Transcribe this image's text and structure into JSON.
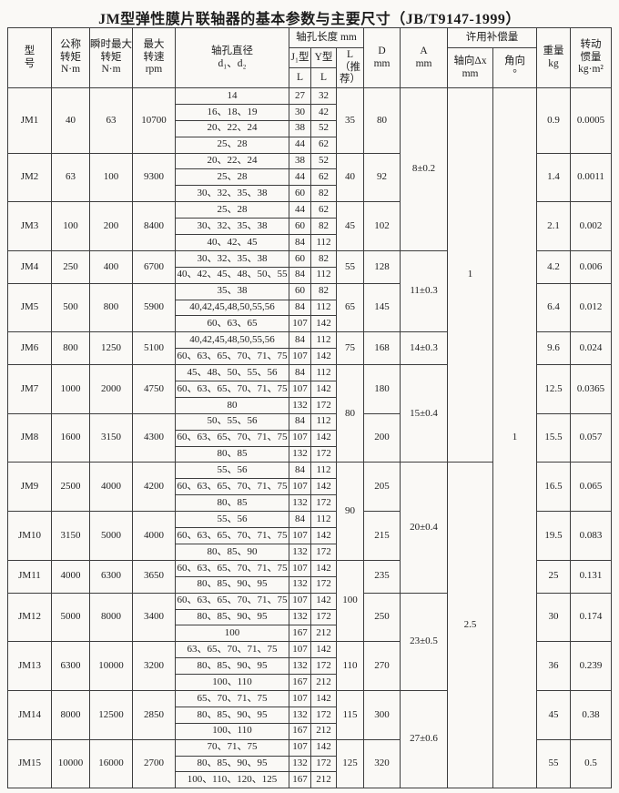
{
  "title": "JM型弹性膜片联轴器的基本参数与主要尺寸（JB/T9147-1999）",
  "colors": {
    "background": "#faf9f6",
    "border": "#3d3d3d",
    "text": "#1c1c1c"
  },
  "header": {
    "model": "型\n号",
    "nominal_torque": "公称\n转矩\nN·m",
    "peak_torque": "瞬时最大\n转矩\nN·m",
    "max_speed": "最大\n转速\nrpm",
    "bore_diameter": "轴孔直径\nd₁、d₂",
    "bore_length": "轴孔长度 mm",
    "j_type": "J₁型",
    "y_type": "Y型",
    "l": "L",
    "l_rec": "L\n（推荐）",
    "d_col": "D\nmm",
    "a_col": "A\nmm",
    "compensation": "许用补偿量",
    "axial": "轴向Δx\nmm",
    "angular": "角向\n°",
    "weight": "重量\nkg",
    "inertia": "转动\n惯量\nkg·m²"
  },
  "table": {
    "models": [
      {
        "model": "JM1",
        "nominal_torque": "40",
        "peak_torque": "63",
        "max_speed": "10700",
        "D": "80",
        "weight": "0.9",
        "inertia": "0.0005",
        "bores": [
          {
            "d": "14",
            "j_l": "27",
            "y_l": "32"
          },
          {
            "d": "16、18、19",
            "j_l": "30",
            "y_l": "42"
          },
          {
            "d": "20、22、24",
            "j_l": "38",
            "y_l": "52"
          },
          {
            "d": "25、28",
            "j_l": "44",
            "y_l": "62"
          }
        ]
      },
      {
        "model": "JM2",
        "nominal_torque": "63",
        "peak_torque": "100",
        "max_speed": "9300",
        "D": "92",
        "weight": "1.4",
        "inertia": "0.0011",
        "bores": [
          {
            "d": "20、22、24",
            "j_l": "38",
            "y_l": "52"
          },
          {
            "d": "25、28",
            "j_l": "44",
            "y_l": "62"
          },
          {
            "d": "30、32、35、38",
            "j_l": "60",
            "y_l": "82"
          }
        ]
      },
      {
        "model": "JM3",
        "nominal_torque": "100",
        "peak_torque": "200",
        "max_speed": "8400",
        "D": "102",
        "weight": "2.1",
        "inertia": "0.002",
        "bores": [
          {
            "d": "25、28",
            "j_l": "44",
            "y_l": "62"
          },
          {
            "d": "30、32、35、38",
            "j_l": "60",
            "y_l": "82"
          },
          {
            "d": "40、42、45",
            "j_l": "84",
            "y_l": "112"
          }
        ]
      },
      {
        "model": "JM4",
        "nominal_torque": "250",
        "peak_torque": "400",
        "max_speed": "6700",
        "D": "128",
        "weight": "4.2",
        "inertia": "0.006",
        "bores": [
          {
            "d": "30、32、35、38",
            "j_l": "60",
            "y_l": "82"
          },
          {
            "d": "40、42、45、48、50、55",
            "j_l": "84",
            "y_l": "112"
          }
        ]
      },
      {
        "model": "JM5",
        "nominal_torque": "500",
        "peak_torque": "800",
        "max_speed": "5900",
        "D": "145",
        "weight": "6.4",
        "inertia": "0.012",
        "bores": [
          {
            "d": "35、38",
            "j_l": "60",
            "y_l": "82"
          },
          {
            "d": "40,42,45,48,50,55,56",
            "j_l": "84",
            "y_l": "112"
          },
          {
            "d": "60、63、65",
            "j_l": "107",
            "y_l": "142"
          }
        ]
      },
      {
        "model": "JM6",
        "nominal_torque": "800",
        "peak_torque": "1250",
        "max_speed": "5100",
        "D": "168",
        "weight": "9.6",
        "inertia": "0.024",
        "bores": [
          {
            "d": "40,42,45,48,50,55,56",
            "j_l": "84",
            "y_l": "112"
          },
          {
            "d": "60、63、65、70、71、75",
            "j_l": "107",
            "y_l": "142"
          }
        ]
      },
      {
        "model": "JM7",
        "nominal_torque": "1000",
        "peak_torque": "2000",
        "max_speed": "4750",
        "D": "180",
        "weight": "12.5",
        "inertia": "0.0365",
        "bores": [
          {
            "d": "45、48、50、55、56",
            "j_l": "84",
            "y_l": "112"
          },
          {
            "d": "60、63、65、70、71、75",
            "j_l": "107",
            "y_l": "142"
          },
          {
            "d": "80",
            "j_l": "132",
            "y_l": "172"
          }
        ]
      },
      {
        "model": "JM8",
        "nominal_torque": "1600",
        "peak_torque": "3150",
        "max_speed": "4300",
        "D": "200",
        "weight": "15.5",
        "inertia": "0.057",
        "bores": [
          {
            "d": "50、55、56",
            "j_l": "84",
            "y_l": "112"
          },
          {
            "d": "60、63、65、70、71、75",
            "j_l": "107",
            "y_l": "142"
          },
          {
            "d": "80、85",
            "j_l": "132",
            "y_l": "172"
          }
        ]
      },
      {
        "model": "JM9",
        "nominal_torque": "2500",
        "peak_torque": "4000",
        "max_speed": "4200",
        "D": "205",
        "weight": "16.5",
        "inertia": "0.065",
        "bores": [
          {
            "d": "55、56",
            "j_l": "84",
            "y_l": "112"
          },
          {
            "d": "60、63、65、70、71、75",
            "j_l": "107",
            "y_l": "142"
          },
          {
            "d": "80、85",
            "j_l": "132",
            "y_l": "172"
          }
        ]
      },
      {
        "model": "JM10",
        "nominal_torque": "3150",
        "peak_torque": "5000",
        "max_speed": "4000",
        "D": "215",
        "weight": "19.5",
        "inertia": "0.083",
        "bores": [
          {
            "d": "55、56",
            "j_l": "84",
            "y_l": "112"
          },
          {
            "d": "60、63、65、70、71、75",
            "j_l": "107",
            "y_l": "142"
          },
          {
            "d": "80、85、90",
            "j_l": "132",
            "y_l": "172"
          }
        ]
      },
      {
        "model": "JM11",
        "nominal_torque": "4000",
        "peak_torque": "6300",
        "max_speed": "3650",
        "D": "235",
        "weight": "25",
        "inertia": "0.131",
        "bores": [
          {
            "d": "60、63、65、70、71、75",
            "j_l": "107",
            "y_l": "142"
          },
          {
            "d": "80、85、90、95",
            "j_l": "132",
            "y_l": "172"
          }
        ]
      },
      {
        "model": "JM12",
        "nominal_torque": "5000",
        "peak_torque": "8000",
        "max_speed": "3400",
        "D": "250",
        "weight": "30",
        "inertia": "0.174",
        "bores": [
          {
            "d": "60、63、65、70、71、75",
            "j_l": "107",
            "y_l": "142"
          },
          {
            "d": "80、85、90、95",
            "j_l": "132",
            "y_l": "172"
          },
          {
            "d": "100",
            "j_l": "167",
            "y_l": "212"
          }
        ]
      },
      {
        "model": "JM13",
        "nominal_torque": "6300",
        "peak_torque": "10000",
        "max_speed": "3200",
        "D": "270",
        "weight": "36",
        "inertia": "0.239",
        "bores": [
          {
            "d": "63、65、70、71、75",
            "j_l": "107",
            "y_l": "142"
          },
          {
            "d": "80、85、90、95",
            "j_l": "132",
            "y_l": "172"
          },
          {
            "d": "100、110",
            "j_l": "167",
            "y_l": "212"
          }
        ]
      },
      {
        "model": "JM14",
        "nominal_torque": "8000",
        "peak_torque": "12500",
        "max_speed": "2850",
        "D": "300",
        "weight": "45",
        "inertia": "0.38",
        "bores": [
          {
            "d": "65、70、71、75",
            "j_l": "107",
            "y_l": "142"
          },
          {
            "d": "80、85、90、95",
            "j_l": "132",
            "y_l": "172"
          },
          {
            "d": "100、110",
            "j_l": "167",
            "y_l": "212"
          }
        ]
      },
      {
        "model": "JM15",
        "nominal_torque": "10000",
        "peak_torque": "16000",
        "max_speed": "2700",
        "D": "320",
        "weight": "55",
        "inertia": "0.5",
        "bores": [
          {
            "d": "70、71、75",
            "j_l": "107",
            "y_l": "142"
          },
          {
            "d": "80、85、90、95",
            "j_l": "132",
            "y_l": "172"
          },
          {
            "d": "100、110、120、125",
            "j_l": "167",
            "y_l": "212"
          }
        ]
      }
    ],
    "l_rec_spans": [
      {
        "value": "35",
        "models": 1
      },
      {
        "value": "40",
        "models": 1
      },
      {
        "value": "45",
        "models": 1
      },
      {
        "value": "55",
        "models": 1
      },
      {
        "value": "65",
        "models": 1
      },
      {
        "value": "75",
        "models": 1
      },
      {
        "value": "80",
        "models": 2
      },
      {
        "value": "90",
        "models": 2
      },
      {
        "value": "100",
        "models": 2
      },
      {
        "value": "110",
        "models": 1
      },
      {
        "value": "115",
        "models": 1
      },
      {
        "value": "125",
        "models": 1
      }
    ],
    "a_spans": [
      {
        "value": "8±0.2",
        "models": 3
      },
      {
        "value": "11±0.3",
        "models": 2
      },
      {
        "value": "14±0.3",
        "models": 1
      },
      {
        "value": "15±0.4",
        "models": 2
      },
      {
        "value": "20±0.4",
        "models": 3
      },
      {
        "value": "23±0.5",
        "models": 2
      },
      {
        "value": "27±0.6",
        "models": 2
      }
    ],
    "axial_spans": [
      {
        "value": "1",
        "models": 8
      },
      {
        "value": "2.5",
        "models": 7
      }
    ],
    "angular_spans": [
      {
        "value": "1",
        "models": 15
      }
    ]
  }
}
